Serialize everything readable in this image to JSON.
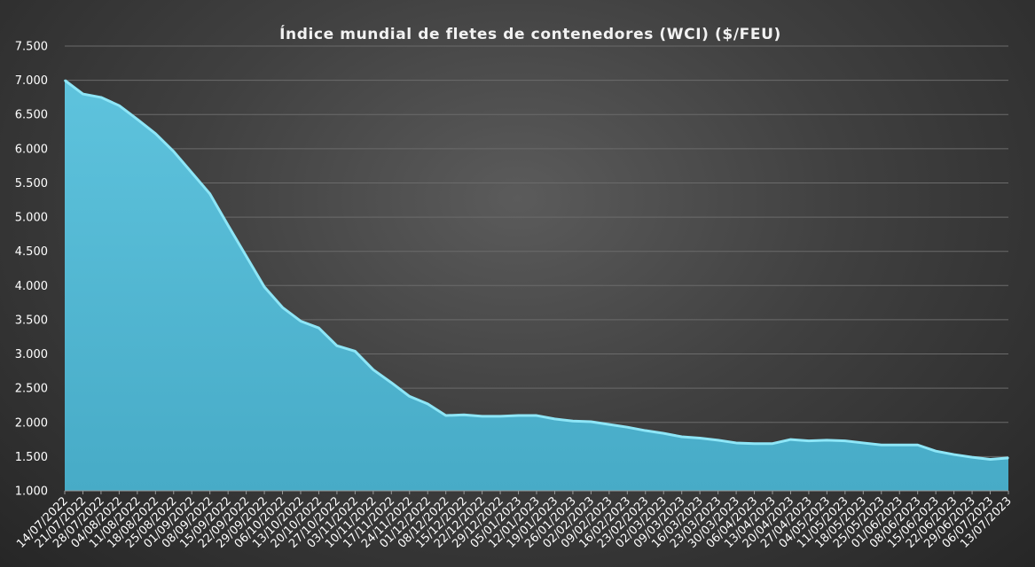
{
  "chart_data": {
    "type": "area",
    "title": "Índice mundial  de fletes de contenedores (WCI) ($/FEU)",
    "xlabel": "",
    "ylabel": "",
    "ylim": [
      1000,
      7500
    ],
    "yticks": [
      1000,
      1500,
      2000,
      2500,
      3000,
      3500,
      4000,
      4500,
      5000,
      5500,
      6000,
      6500,
      7000,
      7500
    ],
    "ytick_labels": [
      "1.000",
      "1.500",
      "2.000",
      "2.500",
      "3.000",
      "3.500",
      "4.000",
      "4.500",
      "5.000",
      "5.500",
      "6.000",
      "6.500",
      "7.000",
      "7.500"
    ],
    "grid": true,
    "fill_color": "#4fb8d3",
    "line_color": "#8ee6f7",
    "categories": [
      "14/07/2022",
      "21/07/2022",
      "28/07/2022",
      "04/08/2022",
      "11/08/2022",
      "18/08/2022",
      "25/08/2022",
      "01/09/2022",
      "08/09/2022",
      "15/09/2022",
      "22/09/2022",
      "29/09/2022",
      "06/10/2022",
      "13/10/2022",
      "20/10/2022",
      "27/10/2022",
      "03/11/2022",
      "10/11/2022",
      "17/11/2022",
      "24/11/2022",
      "01/12/2022",
      "08/12/2022",
      "15/12/2022",
      "22/12/2022",
      "29/12/2022",
      "05/01/2023",
      "12/01/2023",
      "19/01/2023",
      "26/01/2023",
      "02/02/2023",
      "09/02/2023",
      "16/02/2023",
      "23/02/2023",
      "02/03/2023",
      "09/03/2023",
      "16/03/2023",
      "23/03/2023",
      "30/03/2023",
      "06/04/2023",
      "13/04/2023",
      "20/04/2023",
      "27/04/2023",
      "04/05/2023",
      "11/05/2023",
      "18/05/2023",
      "25/05/2023",
      "01/06/2023",
      "08/06/2023",
      "15/06/2023",
      "22/06/2023",
      "29/06/2023",
      "06/07/2023",
      "13/07/2023"
    ],
    "values": [
      7000,
      6800,
      6750,
      6630,
      6430,
      6220,
      5960,
      5650,
      5340,
      4880,
      4430,
      3980,
      3680,
      3480,
      3380,
      3120,
      3040,
      2770,
      2580,
      2380,
      2270,
      2100,
      2110,
      2090,
      2090,
      2100,
      2100,
      2050,
      2020,
      2010,
      1970,
      1930,
      1880,
      1840,
      1790,
      1770,
      1740,
      1700,
      1690,
      1690,
      1750,
      1730,
      1740,
      1730,
      1700,
      1670,
      1670,
      1670,
      1580,
      1530,
      1490,
      1460,
      1480
    ]
  }
}
